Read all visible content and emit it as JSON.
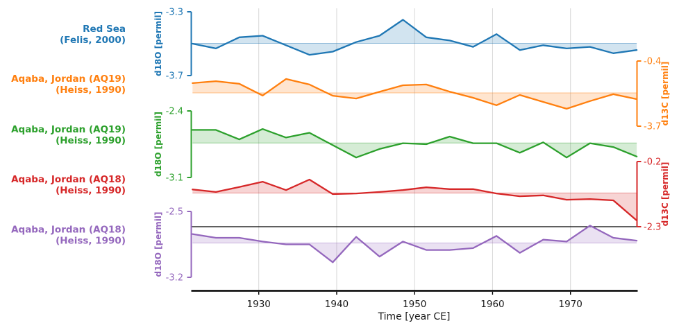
{
  "figure": {
    "background": "#ffffff",
    "grid_color": "#d7d7d7",
    "axis_color": "#000000",
    "text_color": "#1a1a1a"
  },
  "chart_data": {
    "type": "line",
    "title": "",
    "xlabel": "Time [year CE]",
    "grid": true,
    "legend_position": "left-row-labels",
    "x_range": [
      1921.3,
      1978.6
    ],
    "x_ticks": [
      1930,
      1940,
      1950,
      1960,
      1970
    ],
    "x": [
      1921.5,
      1924.5,
      1927.5,
      1930.5,
      1933.5,
      1936.5,
      1939.5,
      1942.5,
      1945.5,
      1948.5,
      1951.5,
      1954.5,
      1957.5,
      1960.5,
      1963.5,
      1966.5,
      1969.5,
      1972.5,
      1975.5,
      1978.5
    ],
    "series": [
      {
        "name": "Red Sea",
        "citation": "(Felis, 2000)",
        "ylabel": "d18O [permil]",
        "axis_side": "left",
        "color": "#1f77b4",
        "y_ticks": [
          -3.3,
          -3.7
        ],
        "y_top": -3.3,
        "y_bottom": -3.7,
        "fill_to_mean": true,
        "values": [
          -3.5,
          -3.53,
          -3.46,
          -3.45,
          -3.51,
          -3.57,
          -3.55,
          -3.49,
          -3.45,
          -3.35,
          -3.46,
          -3.48,
          -3.52,
          -3.44,
          -3.54,
          -3.51,
          -3.53,
          -3.52,
          -3.56,
          -3.54
        ]
      },
      {
        "name": "Aqaba, Jordan (AQ19)",
        "citation": "(Heiss, 1990)",
        "ylabel": "d13C [permil]",
        "axis_side": "right",
        "color": "#ff7f0e",
        "y_ticks": [
          -0.4,
          -3.7
        ],
        "y_top": -0.4,
        "y_bottom": -3.7,
        "fill_to_mean": true,
        "values": [
          -1.52,
          -1.42,
          -1.55,
          -2.15,
          -1.31,
          -1.59,
          -2.16,
          -2.3,
          -1.96,
          -1.63,
          -1.59,
          -1.95,
          -2.26,
          -2.64,
          -2.12,
          -2.47,
          -2.82,
          -2.43,
          -2.08,
          -2.33
        ]
      },
      {
        "name": "Aqaba, Jordan (AQ19)",
        "citation": "(Heiss, 1990)",
        "ylabel": "d18O [permil]",
        "axis_side": "left",
        "color": "#2ca02c",
        "y_ticks": [
          -2.4,
          -3.1
        ],
        "y_top": -2.4,
        "y_bottom": -3.1,
        "fill_to_mean": true,
        "values": [
          -2.6,
          -2.6,
          -2.7,
          -2.59,
          -2.68,
          -2.63,
          -2.76,
          -2.89,
          -2.8,
          -2.74,
          -2.75,
          -2.67,
          -2.74,
          -2.74,
          -2.84,
          -2.73,
          -2.89,
          -2.74,
          -2.78,
          -2.88
        ]
      },
      {
        "name": "Aqaba, Jordan (AQ18)",
        "citation": "(Heiss, 1990)",
        "ylabel": "d13C [permil]",
        "axis_side": "right",
        "color": "#d62728",
        "y_ticks": [
          -0.2,
          -2.3
        ],
        "y_top": -0.2,
        "y_bottom": -2.3,
        "fill_to_mean": true,
        "values": [
          -1.1,
          -1.18,
          -1.02,
          -0.85,
          -1.12,
          -0.78,
          -1.25,
          -1.23,
          -1.18,
          -1.12,
          -1.03,
          -1.09,
          -1.09,
          -1.23,
          -1.32,
          -1.29,
          -1.43,
          -1.41,
          -1.45,
          -2.1
        ]
      },
      {
        "name": "Aqaba, Jordan (AQ18)",
        "citation": "(Heiss, 1990)",
        "ylabel": "d18O [permil]",
        "axis_side": "left",
        "color": "#9467bd",
        "y_ticks": [
          -2.5,
          -3.2
        ],
        "y_top": -2.5,
        "y_bottom": -3.2,
        "fill_to_mean": true,
        "values": [
          -2.74,
          -2.78,
          -2.78,
          -2.82,
          -2.85,
          -2.85,
          -3.04,
          -2.77,
          -2.98,
          -2.82,
          -2.91,
          -2.91,
          -2.89,
          -2.76,
          -2.94,
          -2.8,
          -2.82,
          -2.65,
          -2.78,
          -2.81
        ]
      }
    ],
    "reference_line": {
      "color": "#000000",
      "aligned_with": "bottom of AQ18 d13C axis"
    }
  }
}
